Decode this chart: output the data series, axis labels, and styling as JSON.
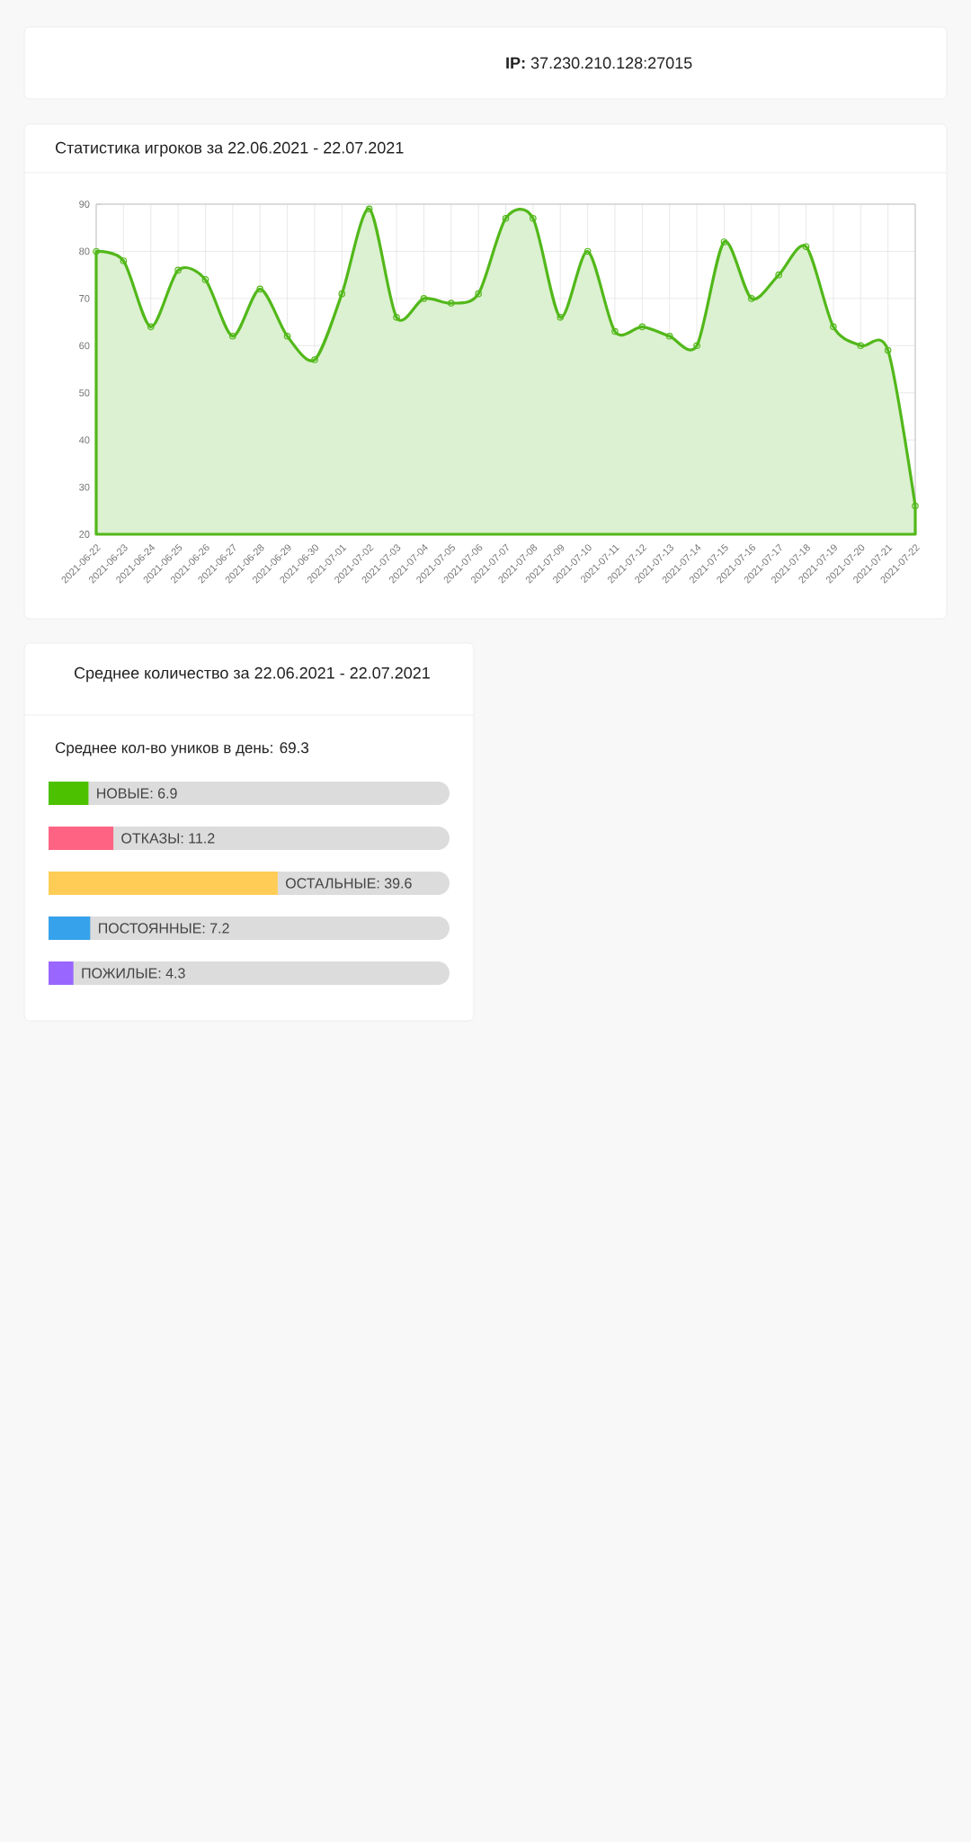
{
  "chart_data": [
    {
      "type": "area",
      "title": "Статистика игроков за 22.06.2021 - 22.07.2021",
      "annotations": [
        "**IP:** 37.230.210.128:27015"
      ],
      "categories": [
        "2021-06-22",
        "2021-06-23",
        "2021-06-24",
        "2021-06-25",
        "2021-06-26",
        "2021-06-27",
        "2021-06-28",
        "2021-06-29",
        "2021-06-30",
        "2021-07-01",
        "2021-07-02",
        "2021-07-03",
        "2021-07-04",
        "2021-07-05",
        "2021-07-06",
        "2021-07-07",
        "2021-07-08",
        "2021-07-09",
        "2021-07-10",
        "2021-07-11",
        "2021-07-12",
        "2021-07-13",
        "2021-07-14",
        "2021-07-15",
        "2021-07-16",
        "2021-07-17",
        "2021-07-18",
        "2021-07-19",
        "2021-07-20",
        "2021-07-21",
        "2021-07-22"
      ],
      "values": [
        80,
        78,
        64,
        76,
        74,
        62,
        72,
        62,
        57,
        71,
        89,
        66,
        70,
        69,
        71,
        87,
        87,
        66,
        80,
        63,
        64,
        62,
        60,
        82,
        70,
        75,
        81,
        64,
        60,
        59,
        26
      ],
      "color": "#52b81a",
      "ylim": [
        20,
        90
      ],
      "yticks": [
        20,
        30,
        40,
        50,
        60,
        70,
        80,
        90
      ],
      "grid": true,
      "marker": "circle"
    },
    {
      "type": "bar",
      "orientation": "horizontal",
      "title": "Среднее количество за 22.06.2021 - 22.07.2021",
      "subtitle": "Среднее кол-во уников в день: 69.3",
      "categories": [
        null,
        null,
        null,
        null,
        null
      ],
      "values": [
        6.9,
        11.2,
        39.6,
        7.2,
        4.3
      ],
      "value_labels": [
        "НОВЫЕ: 6.9",
        "ОТКАЗЫ: 11.2",
        "ОСТАЛЬНЫЕ: 39.6",
        "ПОСТОЯННЫЕ: 7.2",
        "ПОЖИЛЫЕ: 4.3"
      ],
      "colors": [
        "#4cc100",
        "#ff6384",
        "#ffcd56",
        "#36a2eb",
        "#9966ff"
      ],
      "xlim": [
        0,
        69.3
      ],
      "tick_labels": false
    }
  ]
}
